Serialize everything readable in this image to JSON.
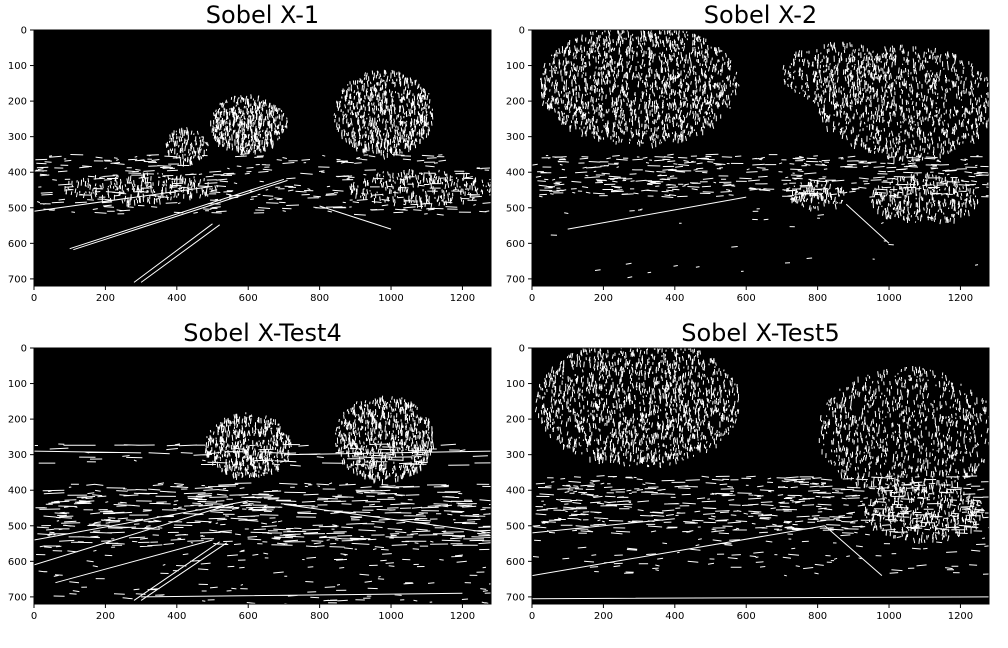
{
  "panels": [
    {
      "title": "Sobel X-1",
      "x_ticks": [
        "0",
        "200",
        "400",
        "600",
        "800",
        "1000",
        "1200"
      ],
      "y_ticks": [
        "0",
        "100",
        "200",
        "300",
        "400",
        "500",
        "600",
        "700"
      ],
      "image": {
        "type": "binary-edge-map",
        "bg": "#000000",
        "fg": "#ffffff",
        "width": 1280,
        "height": 720
      }
    },
    {
      "title": "Sobel X-2",
      "x_ticks": [
        "0",
        "200",
        "400",
        "600",
        "800",
        "1000",
        "1200"
      ],
      "y_ticks": [
        "0",
        "100",
        "200",
        "300",
        "400",
        "500",
        "600",
        "700"
      ],
      "image": {
        "type": "binary-edge-map",
        "bg": "#000000",
        "fg": "#ffffff",
        "width": 1280,
        "height": 720
      }
    },
    {
      "title": "Sobel X-Test4",
      "x_ticks": [
        "0",
        "200",
        "400",
        "600",
        "800",
        "1000",
        "1200"
      ],
      "y_ticks": [
        "0",
        "100",
        "200",
        "300",
        "400",
        "500",
        "600",
        "700"
      ],
      "image": {
        "type": "binary-edge-map",
        "bg": "#000000",
        "fg": "#ffffff",
        "width": 1280,
        "height": 720
      }
    },
    {
      "title": "Sobel X-Test5",
      "x_ticks": [
        "0",
        "200",
        "400",
        "600",
        "800",
        "1000",
        "1200"
      ],
      "y_ticks": [
        "0",
        "100",
        "200",
        "300",
        "400",
        "500",
        "600",
        "700"
      ],
      "image": {
        "type": "binary-edge-map",
        "bg": "#000000",
        "fg": "#ffffff",
        "width": 1280,
        "height": 720
      }
    }
  ]
}
